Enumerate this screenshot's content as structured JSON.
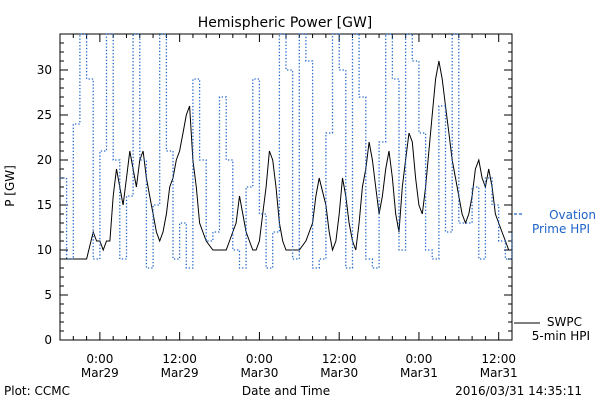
{
  "chart_data": {
    "type": "line",
    "title": "Hemispheric Power [GW]",
    "xlabel": "Date and Time",
    "ylabel": "P [GW]",
    "ylim": [
      0,
      34
    ],
    "yticks": [
      0,
      5,
      10,
      15,
      20,
      25,
      30
    ],
    "xlim_hours": [
      -6,
      62
    ],
    "xticks": [
      {
        "hour": 0,
        "time": "0:00",
        "date": "Mar29"
      },
      {
        "hour": 12,
        "time": "12:00",
        "date": "Mar29"
      },
      {
        "hour": 24,
        "time": "0:00",
        "date": "Mar30"
      },
      {
        "hour": 36,
        "time": "12:00",
        "date": "Mar30"
      },
      {
        "hour": 48,
        "time": "0:00",
        "date": "Mar31"
      },
      {
        "hour": 60,
        "time": "12:00",
        "date": "Mar31"
      }
    ],
    "grid": false,
    "legend_position": "right",
    "series": [
      {
        "name": "SWPC 5-min HPI",
        "legend_lines": [
          "SWPC",
          "5-min HPI"
        ],
        "color": "#000000",
        "style": "solid",
        "x": [
          -6,
          -4,
          -2,
          -1,
          -0.5,
          0,
          0.5,
          1,
          1.5,
          2,
          2.5,
          3,
          3.5,
          4,
          4.5,
          5,
          5.5,
          6,
          6.5,
          7,
          7.5,
          8,
          8.5,
          9,
          9.5,
          10,
          10.5,
          11,
          11.5,
          12,
          12.5,
          13,
          13.5,
          14,
          14.5,
          15,
          16,
          17,
          18,
          19,
          20,
          20.5,
          21,
          21.5,
          22,
          22.5,
          23,
          23.5,
          24,
          24.5,
          25,
          25.5,
          26,
          26.5,
          27,
          27.5,
          28,
          29,
          30,
          31,
          32,
          32.5,
          33,
          34,
          34.5,
          35,
          35.5,
          36,
          36.5,
          37,
          37.5,
          38,
          38.5,
          39,
          39.5,
          40,
          40.5,
          41,
          41.5,
          42,
          42.5,
          43,
          43.5,
          44,
          44.5,
          45,
          45.5,
          46,
          46.5,
          47,
          47.5,
          48,
          48.5,
          49,
          49.5,
          50,
          50.5,
          51,
          51.5,
          52,
          52.5,
          53,
          53.5,
          54,
          54.5,
          55,
          55.5,
          56,
          56.5,
          57,
          57.5,
          58,
          58.5,
          59,
          59.5,
          60,
          60.5,
          61,
          61.5
        ],
        "y": [
          9,
          9,
          9,
          12,
          11,
          11,
          10,
          11,
          11,
          16,
          19,
          17,
          15,
          18,
          21,
          19,
          17,
          20,
          21,
          18,
          16,
          14,
          12,
          11,
          12,
          14,
          17,
          18,
          20,
          21,
          23,
          25,
          26,
          20,
          17,
          13,
          11,
          10,
          10,
          10,
          12,
          13,
          16,
          14,
          12,
          11,
          10,
          10,
          11,
          14,
          17,
          21,
          20,
          17,
          13,
          11,
          10,
          10,
          10,
          11,
          13,
          16,
          18,
          15,
          12,
          10,
          11,
          14,
          18,
          16,
          13,
          11,
          10,
          13,
          17,
          19,
          22,
          20,
          17,
          14,
          16,
          19,
          21,
          18,
          14,
          12,
          17,
          20,
          23,
          22,
          18,
          15,
          14,
          17,
          21,
          25,
          29,
          31,
          29,
          26,
          23,
          20,
          18,
          16,
          14,
          13,
          14,
          16,
          19,
          20,
          18,
          17,
          19,
          17,
          14,
          13,
          12,
          11,
          10
        ]
      },
      {
        "name": "Ovation Prime HPI",
        "legend_lines": [
          "Ovation",
          "Prime HPI"
        ],
        "color": "#1e64c8",
        "style": "dotted",
        "x": [
          -6,
          -5,
          -4,
          -3,
          -2,
          -1,
          0,
          1,
          2,
          3,
          4,
          5,
          6,
          7,
          8,
          9,
          10,
          11,
          12,
          13,
          14,
          15,
          16,
          17,
          18,
          19,
          20,
          21,
          22,
          23,
          24,
          25,
          26,
          27,
          28,
          29,
          30,
          31,
          32,
          33,
          34,
          35,
          36,
          37,
          38,
          39,
          40,
          41,
          42,
          43,
          44,
          45,
          46,
          47,
          48,
          49,
          50,
          51,
          52,
          53,
          54,
          55,
          56,
          57,
          58,
          59,
          60,
          61,
          62
        ],
        "y": [
          18,
          9,
          24,
          34,
          29,
          9,
          21,
          34,
          20,
          9,
          16,
          34,
          20,
          8,
          15,
          34,
          21,
          9,
          13,
          8,
          29,
          20,
          11,
          12,
          27,
          20,
          10,
          8,
          17,
          29,
          14,
          8,
          12,
          34,
          30,
          9,
          34,
          31,
          8,
          9,
          23,
          34,
          30,
          8,
          34,
          27,
          9,
          8,
          22,
          34,
          29,
          10,
          34,
          31,
          23,
          10,
          9,
          26,
          12,
          34,
          13,
          13,
          17,
          9,
          18,
          15,
          11,
          9,
          12
        ]
      }
    ]
  },
  "footer": {
    "plot_credit": "Plot: CCMC",
    "timestamp": "2016/03/31 14:35:11"
  }
}
